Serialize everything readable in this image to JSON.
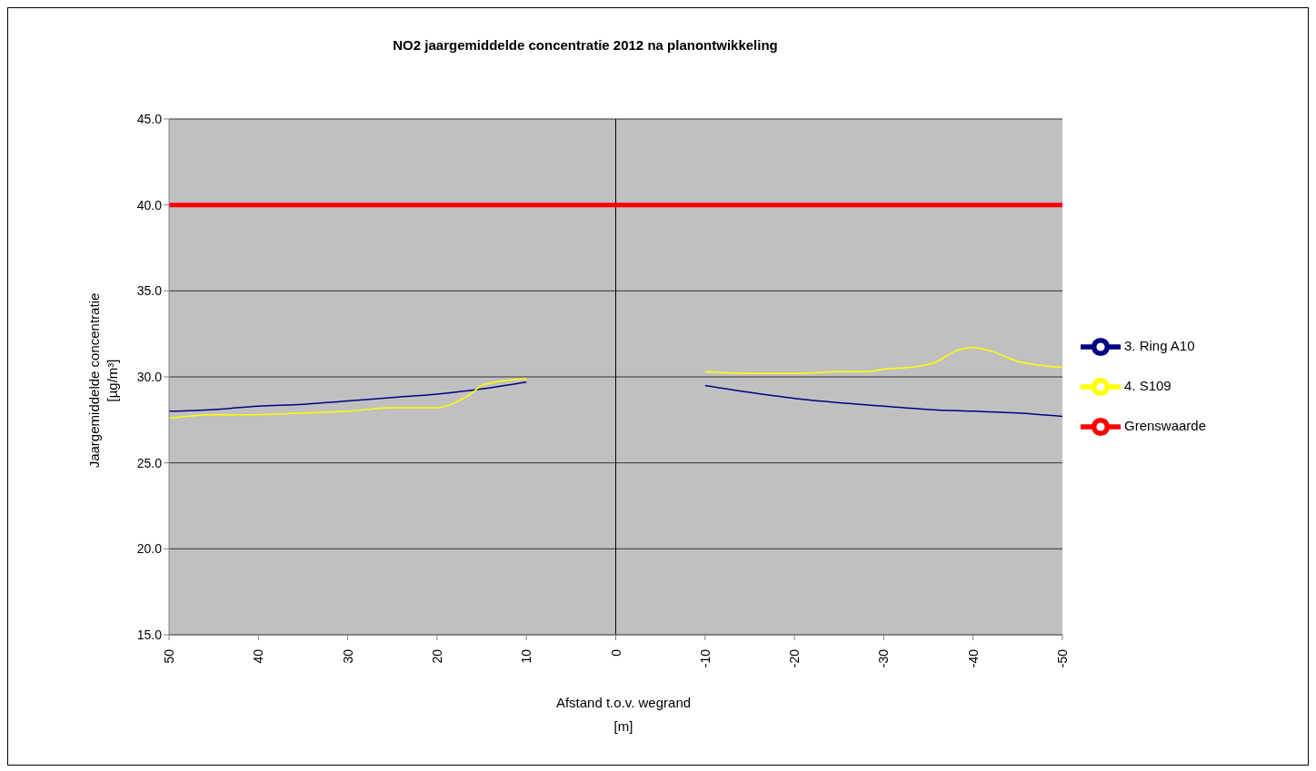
{
  "chart_data": {
    "type": "line",
    "title": "NO2 jaargemiddelde concentratie 2012 na planontwikkeling",
    "xlabel": "Afstand t.o.v. wegrand\n[m]",
    "ylabel": "Jaargemiddelde concentratie\n[µg/m³]",
    "series": [
      {
        "name": "3. Ring A10",
        "color": "#000080",
        "x": [
          50,
          45,
          40,
          35,
          30,
          25,
          20,
          15,
          10,
          null,
          -10,
          -15,
          -20,
          -25,
          -30,
          -35,
          -40,
          -45,
          -50
        ],
        "values": [
          28.0,
          28.1,
          28.3,
          28.4,
          28.6,
          28.8,
          29.0,
          29.3,
          29.7,
          null,
          29.5,
          29.1,
          28.75,
          28.5,
          28.3,
          28.1,
          28.0,
          27.9,
          27.7
        ]
      },
      {
        "name": "4. S109",
        "color": "#ffff00",
        "x": [
          50,
          45,
          40,
          35,
          30,
          25,
          20,
          18,
          16,
          15,
          12,
          10,
          null,
          -10,
          -15,
          -20,
          -25,
          -28,
          -30,
          -33,
          -36,
          -38,
          -40,
          -42,
          -45,
          -48,
          -50
        ],
        "values": [
          27.6,
          27.8,
          27.8,
          27.9,
          28.0,
          28.2,
          28.2,
          28.5,
          29.1,
          29.5,
          29.8,
          29.9,
          null,
          30.3,
          30.2,
          30.2,
          30.3,
          30.3,
          30.45,
          30.55,
          30.9,
          31.5,
          31.7,
          31.5,
          30.9,
          30.65,
          30.55
        ]
      },
      {
        "name": "Grenswaarde",
        "color": "#ff0000",
        "x": [
          50,
          -50
        ],
        "values": [
          40,
          40
        ]
      }
    ],
    "xlim": [
      50,
      -50
    ],
    "xticks": [
      50,
      40,
      30,
      20,
      10,
      0,
      -10,
      -20,
      -30,
      -40,
      -50
    ],
    "ylim": [
      15,
      45
    ],
    "yticks": [
      {
        "value": 15,
        "label": "15.0"
      },
      {
        "value": 20,
        "label": "20.0"
      },
      {
        "value": 25,
        "label": "25.0"
      },
      {
        "value": 30,
        "label": "30.0"
      },
      {
        "value": 35,
        "label": "35.0"
      },
      {
        "value": 40,
        "label": "40.0"
      },
      {
        "value": 45,
        "label": "45.0"
      }
    ],
    "ref_lines": [
      {
        "axis": "x",
        "value": 0,
        "color": "#000000"
      }
    ],
    "grid": "y",
    "legend": "right",
    "marker": "none",
    "line_style": "solid"
  }
}
